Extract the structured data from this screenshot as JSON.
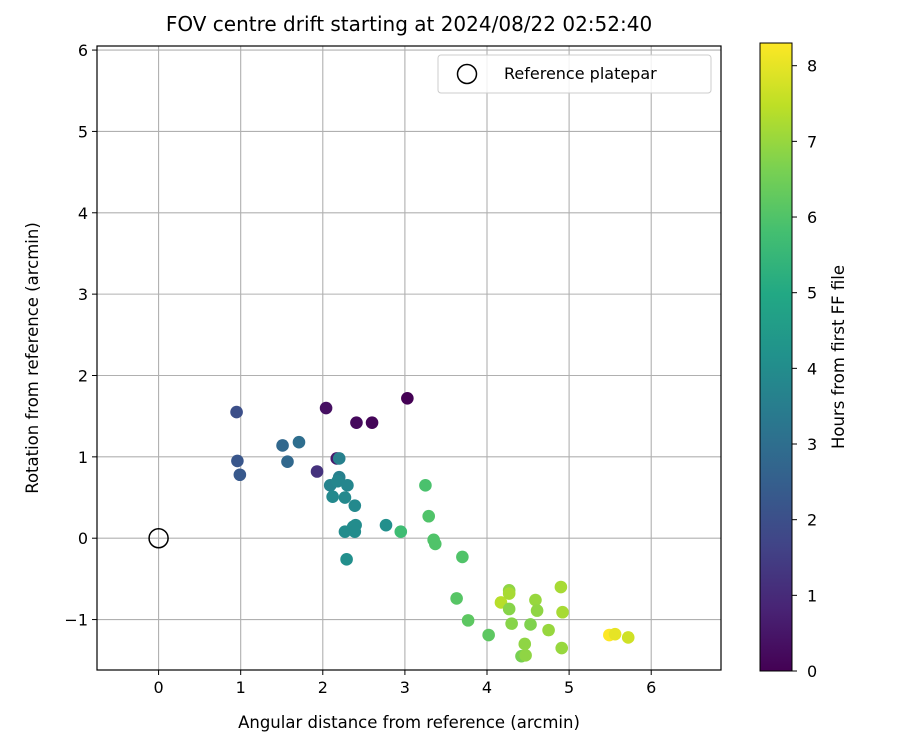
{
  "chart_data": {
    "type": "scatter",
    "title": "FOV centre drift starting at 2024/08/22 02:52:40",
    "xlabel": "Angular distance from reference (arcmin)",
    "ylabel": "Rotation from reference (arcmin)",
    "xlim": [
      -0.75,
      6.85
    ],
    "ylim": [
      -1.62,
      6.05
    ],
    "xticks": [
      0,
      1,
      2,
      3,
      4,
      5,
      6
    ],
    "yticks": [
      -1,
      0,
      1,
      2,
      3,
      4,
      5,
      6
    ],
    "xtick_labels": [
      "0",
      "1",
      "2",
      "3",
      "4",
      "5",
      "6"
    ],
    "ytick_labels": [
      "−1",
      "0",
      "1",
      "2",
      "3",
      "4",
      "5",
      "6"
    ],
    "grid": true,
    "legend": {
      "position": "top-right",
      "entries": [
        "Reference platepar"
      ]
    },
    "reference_point": {
      "x": 0,
      "y": 0,
      "marker": "open-circle"
    },
    "colorbar": {
      "label": "Hours from first FF file",
      "colormap": "viridis",
      "min": 0,
      "max": 8.3,
      "ticks": [
        0,
        1,
        2,
        3,
        4,
        5,
        6,
        7,
        8
      ],
      "tick_labels": [
        "0",
        "1",
        "2",
        "3",
        "4",
        "5",
        "6",
        "7",
        "8"
      ]
    },
    "points": [
      {
        "x": 3.03,
        "y": 1.72,
        "h": 0.0
      },
      {
        "x": 2.6,
        "y": 1.42,
        "h": 0.1
      },
      {
        "x": 2.41,
        "y": 1.42,
        "h": 0.2
      },
      {
        "x": 2.04,
        "y": 1.6,
        "h": 0.35
      },
      {
        "x": 2.17,
        "y": 0.98,
        "h": 0.6
      },
      {
        "x": 1.93,
        "y": 0.82,
        "h": 1.2
      },
      {
        "x": 0.95,
        "y": 1.55,
        "h": 2.0
      },
      {
        "x": 0.96,
        "y": 0.95,
        "h": 2.2
      },
      {
        "x": 0.99,
        "y": 0.78,
        "h": 2.3
      },
      {
        "x": 1.51,
        "y": 1.14,
        "h": 2.8
      },
      {
        "x": 1.57,
        "y": 0.94,
        "h": 2.8
      },
      {
        "x": 1.71,
        "y": 1.18,
        "h": 3.0
      },
      {
        "x": 2.2,
        "y": 0.98,
        "h": 3.6
      },
      {
        "x": 2.09,
        "y": 0.65,
        "h": 3.7
      },
      {
        "x": 2.2,
        "y": 0.75,
        "h": 3.6
      },
      {
        "x": 2.18,
        "y": 0.7,
        "h": 3.8
      },
      {
        "x": 2.3,
        "y": 0.65,
        "h": 3.8
      },
      {
        "x": 2.12,
        "y": 0.51,
        "h": 3.9
      },
      {
        "x": 2.27,
        "y": 0.5,
        "h": 3.9
      },
      {
        "x": 2.39,
        "y": 0.4,
        "h": 3.9
      },
      {
        "x": 2.27,
        "y": 0.08,
        "h": 4.0
      },
      {
        "x": 2.37,
        "y": 0.14,
        "h": 4.0
      },
      {
        "x": 2.4,
        "y": 0.16,
        "h": 4.0
      },
      {
        "x": 2.39,
        "y": 0.08,
        "h": 4.0
      },
      {
        "x": 2.29,
        "y": -0.26,
        "h": 4.1
      },
      {
        "x": 2.77,
        "y": 0.16,
        "h": 4.1
      },
      {
        "x": 2.95,
        "y": 0.08,
        "h": 5.7
      },
      {
        "x": 3.25,
        "y": 0.65,
        "h": 5.9
      },
      {
        "x": 3.29,
        "y": 0.27,
        "h": 6.0
      },
      {
        "x": 3.35,
        "y": -0.02,
        "h": 6.0
      },
      {
        "x": 3.37,
        "y": -0.07,
        "h": 6.0
      },
      {
        "x": 3.7,
        "y": -0.23,
        "h": 6.0
      },
      {
        "x": 3.63,
        "y": -0.74,
        "h": 6.1
      },
      {
        "x": 3.77,
        "y": -1.01,
        "h": 6.2
      },
      {
        "x": 4.02,
        "y": -1.19,
        "h": 6.2
      },
      {
        "x": 4.17,
        "y": -0.79,
        "h": 7.4
      },
      {
        "x": 4.27,
        "y": -0.64,
        "h": 6.9
      },
      {
        "x": 4.27,
        "y": -0.68,
        "h": 7.2
      },
      {
        "x": 4.27,
        "y": -0.87,
        "h": 6.8
      },
      {
        "x": 4.3,
        "y": -1.05,
        "h": 6.8
      },
      {
        "x": 4.42,
        "y": -1.45,
        "h": 6.6
      },
      {
        "x": 4.46,
        "y": -1.3,
        "h": 6.9
      },
      {
        "x": 4.47,
        "y": -1.44,
        "h": 6.9
      },
      {
        "x": 4.53,
        "y": -1.06,
        "h": 6.7
      },
      {
        "x": 4.59,
        "y": -0.76,
        "h": 7.0
      },
      {
        "x": 4.61,
        "y": -0.89,
        "h": 6.9
      },
      {
        "x": 4.75,
        "y": -1.13,
        "h": 7.0
      },
      {
        "x": 4.9,
        "y": -0.6,
        "h": 7.2
      },
      {
        "x": 4.92,
        "y": -0.91,
        "h": 7.2
      },
      {
        "x": 4.91,
        "y": -1.35,
        "h": 7.0
      },
      {
        "x": 5.49,
        "y": -1.19,
        "h": 8.3
      },
      {
        "x": 5.56,
        "y": -1.18,
        "h": 8.0
      },
      {
        "x": 5.72,
        "y": -1.22,
        "h": 7.7
      }
    ]
  }
}
